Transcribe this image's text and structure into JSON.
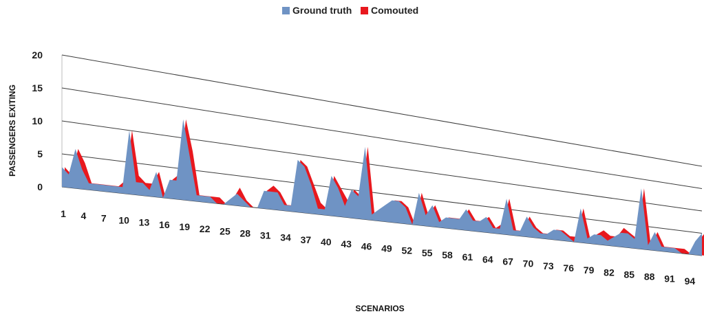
{
  "chart_data": {
    "type": "area",
    "title": "",
    "xlabel": "SCENARIOS",
    "ylabel": "PASSENGERS EXITING",
    "ylim": [
      0,
      20
    ],
    "y_ticks": [
      0,
      5,
      10,
      15,
      20
    ],
    "x_tick_labels": [
      "1",
      "4",
      "7",
      "10",
      "13",
      "16",
      "19",
      "22",
      "25",
      "28",
      "31",
      "34",
      "37",
      "40",
      "43",
      "46",
      "49",
      "52",
      "55",
      "58",
      "61",
      "64",
      "67",
      "70",
      "73",
      "76",
      "79",
      "82",
      "85",
      "88",
      "91",
      "94"
    ],
    "legend_position": "top-center",
    "grid": true,
    "x": [
      1,
      2,
      3,
      4,
      5,
      6,
      7,
      8,
      9,
      10,
      11,
      12,
      13,
      14,
      15,
      16,
      17,
      18,
      19,
      20,
      21,
      22,
      23,
      24,
      25,
      26,
      27,
      28,
      29,
      30,
      31,
      32,
      33,
      34,
      35,
      36,
      37,
      38,
      39,
      40,
      41,
      42,
      43,
      44,
      45,
      46,
      47,
      48,
      49,
      50,
      51,
      52,
      53,
      54,
      55,
      56,
      57,
      58,
      59,
      60,
      61,
      62,
      63,
      64,
      65,
      66,
      67,
      68,
      69,
      70,
      71,
      72,
      73,
      74,
      75,
      76,
      77,
      78,
      79,
      80,
      81,
      82,
      83,
      84,
      85,
      86,
      87,
      88,
      89,
      90,
      91,
      92,
      93,
      94,
      95,
      96
    ],
    "series": [
      {
        "name": "Ground truth",
        "color": "#6f93c4",
        "values": [
          3,
          2,
          6,
          3,
          1,
          1,
          1,
          1,
          1,
          1,
          10,
          2,
          2,
          1,
          4,
          0,
          3,
          3,
          13,
          7,
          1,
          1,
          1,
          0,
          0,
          1,
          2,
          1,
          0,
          0,
          3,
          3,
          3,
          1,
          1,
          9,
          8,
          5,
          1,
          1,
          7,
          5,
          2,
          5,
          4,
          13,
          1,
          2,
          3,
          4,
          4,
          3,
          0,
          6,
          2,
          4,
          1,
          2,
          2,
          2,
          4,
          2,
          2,
          3,
          1,
          1,
          7,
          1,
          1,
          4,
          2,
          1,
          1,
          2,
          2,
          1,
          0,
          7,
          1,
          2,
          2,
          1,
          2,
          3,
          3,
          2,
          13,
          1,
          4,
          1,
          1,
          1,
          0,
          0,
          3,
          5
        ]
      },
      {
        "name": "Comouted",
        "color": "#e8181e",
        "values": [
          3,
          2,
          6,
          4,
          1,
          1,
          1,
          1,
          1,
          2,
          10,
          3,
          2,
          2,
          4,
          0,
          3,
          4,
          13,
          8,
          1,
          1,
          1,
          1,
          0,
          1,
          3,
          1,
          0,
          0,
          3,
          4,
          3,
          1,
          1,
          9,
          8,
          5,
          2,
          1,
          7,
          5,
          3,
          5,
          4,
          13,
          1,
          2,
          3,
          4,
          4,
          3,
          0,
          6,
          2,
          4,
          1,
          2,
          2,
          2,
          4,
          2,
          2,
          3,
          1,
          2,
          7,
          1,
          1,
          4,
          2,
          1,
          1,
          2,
          2,
          1,
          1,
          7,
          1,
          2,
          3,
          2,
          2,
          4,
          3,
          2,
          13,
          1,
          4,
          1,
          1,
          1,
          1,
          0,
          3,
          5
        ]
      }
    ]
  }
}
